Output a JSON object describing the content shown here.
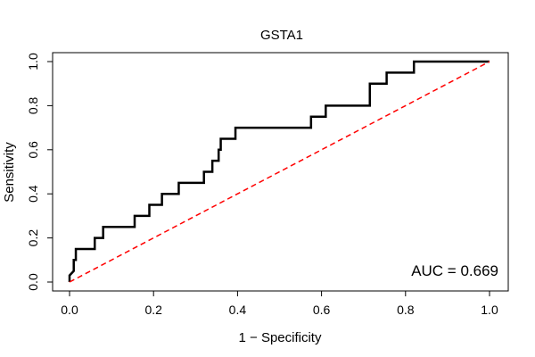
{
  "chart_data": {
    "type": "line",
    "title": "GSTA1",
    "xlabel": "1 − Specificity",
    "ylabel": "Sensitivity",
    "xlim": [
      0.0,
      1.0
    ],
    "ylim": [
      0.0,
      1.0
    ],
    "x_ticks": [
      "0.0",
      "0.2",
      "0.4",
      "0.6",
      "0.8",
      "1.0"
    ],
    "y_ticks": [
      "0.0",
      "0.2",
      "0.4",
      "0.6",
      "0.8",
      "1.0"
    ],
    "grid": false,
    "annotation": "AUC = 0.669",
    "colors": {
      "roc": "#000000",
      "reference": "#ff0000"
    },
    "series": [
      {
        "style": "solid",
        "x": [
          0.0,
          0.0,
          0.01,
          0.01,
          0.015,
          0.015,
          0.06,
          0.06,
          0.08,
          0.08,
          0.155,
          0.155,
          0.19,
          0.19,
          0.22,
          0.22,
          0.26,
          0.26,
          0.32,
          0.32,
          0.34,
          0.34,
          0.355,
          0.355,
          0.36,
          0.36,
          0.395,
          0.395,
          0.575,
          0.575,
          0.61,
          0.61,
          0.715,
          0.715,
          0.755,
          0.755,
          0.82,
          0.82,
          1.0
        ],
        "y": [
          0.0,
          0.03,
          0.05,
          0.1,
          0.1,
          0.15,
          0.15,
          0.2,
          0.2,
          0.25,
          0.25,
          0.3,
          0.3,
          0.35,
          0.35,
          0.4,
          0.4,
          0.45,
          0.45,
          0.5,
          0.5,
          0.55,
          0.55,
          0.6,
          0.6,
          0.65,
          0.65,
          0.7,
          0.7,
          0.75,
          0.75,
          0.8,
          0.8,
          0.9,
          0.9,
          0.95,
          0.95,
          1.0,
          1.0
        ]
      },
      {
        "style": "dashed",
        "x": [
          0.0,
          1.0
        ],
        "y": [
          0.0,
          1.0
        ]
      }
    ]
  }
}
